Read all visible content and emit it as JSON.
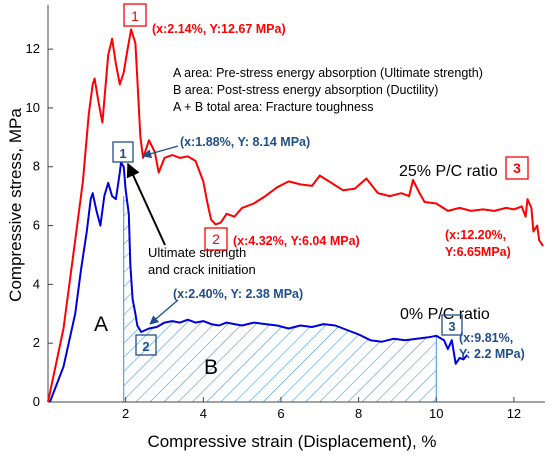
{
  "chart_data": {
    "type": "line",
    "title": "",
    "xlabel": "Compressive strain (Displacement), %",
    "ylabel": "Compressive stress, MPa",
    "xlim": [
      0,
      12.8
    ],
    "ylim": [
      0,
      13.5
    ],
    "xticks": [
      "2",
      "4",
      "6",
      "8",
      "10",
      "12"
    ],
    "xtick_values": [
      2,
      4,
      6,
      8,
      10,
      12
    ],
    "yticks": [
      "0",
      "2",
      "4",
      "6",
      "8",
      "10",
      "12"
    ],
    "ytick_values": [
      0,
      2,
      4,
      6,
      8,
      10,
      12
    ],
    "grid": false,
    "legend": [
      "A area: Pre-stress energy absorption (Ultimate strength)",
      "B area: Post-stress energy absorption (Ductility)",
      "A + B total area: Fracture toughness"
    ],
    "series": [
      {
        "name": "25% P/C ratio",
        "color": "#ff0000",
        "points": [
          [
            0,
            0
          ],
          [
            0.4,
            2.5
          ],
          [
            0.7,
            5.5
          ],
          [
            0.9,
            7.5
          ],
          [
            1.05,
            9.8
          ],
          [
            1.15,
            10.8
          ],
          [
            1.2,
            11.0
          ],
          [
            1.3,
            10.2
          ],
          [
            1.4,
            9.5
          ],
          [
            1.55,
            11.8
          ],
          [
            1.65,
            12.35
          ],
          [
            1.75,
            11.5
          ],
          [
            1.85,
            10.8
          ],
          [
            1.95,
            11.2
          ],
          [
            2.05,
            12.0
          ],
          [
            2.14,
            12.67
          ],
          [
            2.25,
            12.2
          ],
          [
            2.3,
            11.0
          ],
          [
            2.38,
            9.0
          ],
          [
            2.45,
            8.3
          ],
          [
            2.6,
            8.9
          ],
          [
            2.75,
            8.5
          ],
          [
            2.85,
            7.8
          ],
          [
            3.0,
            8.3
          ],
          [
            3.2,
            8.4
          ],
          [
            3.4,
            8.3
          ],
          [
            3.6,
            8.35
          ],
          [
            3.8,
            8.2
          ],
          [
            4.0,
            7.5
          ],
          [
            4.1,
            6.8
          ],
          [
            4.2,
            6.2
          ],
          [
            4.32,
            6.04
          ],
          [
            4.45,
            6.1
          ],
          [
            4.6,
            6.4
          ],
          [
            4.8,
            6.3
          ],
          [
            5.0,
            6.6
          ],
          [
            5.3,
            6.75
          ],
          [
            5.6,
            7.0
          ],
          [
            5.9,
            7.3
          ],
          [
            6.2,
            7.5
          ],
          [
            6.5,
            7.4
          ],
          [
            6.8,
            7.35
          ],
          [
            7.0,
            7.7
          ],
          [
            7.3,
            7.45
          ],
          [
            7.6,
            7.2
          ],
          [
            7.9,
            7.25
          ],
          [
            8.2,
            7.6
          ],
          [
            8.5,
            7.1
          ],
          [
            8.8,
            7.0
          ],
          [
            9.1,
            7.1
          ],
          [
            9.3,
            7.0
          ],
          [
            9.4,
            7.55
          ],
          [
            9.55,
            7.15
          ],
          [
            9.7,
            6.8
          ],
          [
            10.0,
            6.75
          ],
          [
            10.3,
            6.5
          ],
          [
            10.6,
            6.6
          ],
          [
            10.9,
            6.5
          ],
          [
            11.2,
            6.55
          ],
          [
            11.5,
            6.5
          ],
          [
            11.8,
            6.6
          ],
          [
            12.0,
            6.55
          ],
          [
            12.2,
            6.65
          ],
          [
            12.3,
            6.3
          ],
          [
            12.35,
            6.9
          ],
          [
            12.45,
            6.6
          ],
          [
            12.5,
            5.8
          ],
          [
            12.6,
            6.0
          ],
          [
            12.65,
            5.5
          ],
          [
            12.75,
            5.3
          ]
        ]
      },
      {
        "name": "0% P/C ratio",
        "color": "#0000dd",
        "points": [
          [
            0.05,
            0
          ],
          [
            0.4,
            1.2
          ],
          [
            0.7,
            3.0
          ],
          [
            0.85,
            4.5
          ],
          [
            1.0,
            5.8
          ],
          [
            1.1,
            6.9
          ],
          [
            1.15,
            7.1
          ],
          [
            1.25,
            6.5
          ],
          [
            1.35,
            6.0
          ],
          [
            1.45,
            7.0
          ],
          [
            1.55,
            7.45
          ],
          [
            1.65,
            7.0
          ],
          [
            1.75,
            6.9
          ],
          [
            1.85,
            7.8
          ],
          [
            1.88,
            8.14
          ],
          [
            1.95,
            8.0
          ],
          [
            2.0,
            7.2
          ],
          [
            2.08,
            6.4
          ],
          [
            2.12,
            4.7
          ],
          [
            2.18,
            3.5
          ],
          [
            2.25,
            3.0
          ],
          [
            2.3,
            2.6
          ],
          [
            2.4,
            2.38
          ],
          [
            2.6,
            2.5
          ],
          [
            2.8,
            2.55
          ],
          [
            3.0,
            2.7
          ],
          [
            3.2,
            2.75
          ],
          [
            3.4,
            2.7
          ],
          [
            3.6,
            2.8
          ],
          [
            3.8,
            2.7
          ],
          [
            4.0,
            2.75
          ],
          [
            4.2,
            2.65
          ],
          [
            4.4,
            2.6
          ],
          [
            4.6,
            2.7
          ],
          [
            4.8,
            2.65
          ],
          [
            5.0,
            2.6
          ],
          [
            5.3,
            2.7
          ],
          [
            5.6,
            2.65
          ],
          [
            5.9,
            2.6
          ],
          [
            6.2,
            2.5
          ],
          [
            6.5,
            2.6
          ],
          [
            6.8,
            2.55
          ],
          [
            7.1,
            2.65
          ],
          [
            7.4,
            2.6
          ],
          [
            7.7,
            2.45
          ],
          [
            8.0,
            2.3
          ],
          [
            8.3,
            2.1
          ],
          [
            8.6,
            2.05
          ],
          [
            8.9,
            2.15
          ],
          [
            9.2,
            2.1
          ],
          [
            9.5,
            2.15
          ],
          [
            9.8,
            2.2
          ],
          [
            10.0,
            2.25
          ],
          [
            10.2,
            2.1
          ],
          [
            10.3,
            1.8
          ],
          [
            10.4,
            2.1
          ],
          [
            10.5,
            1.3
          ],
          [
            10.6,
            1.5
          ],
          [
            10.7,
            1.45
          ],
          [
            10.8,
            1.6
          ]
        ]
      }
    ],
    "annotations": [
      {
        "marker": "1",
        "text": "(x:2.14%, Y:12.67 MPa)",
        "color": "#ff0000"
      },
      {
        "marker": "2",
        "text": "(x:4.32%, Y:6.04 MPa)",
        "color": "#ff0000"
      },
      {
        "marker": "3",
        "text_line1": "(x:12.20%,",
        "text_line2": "Y:6.65MPa)",
        "color": "#ff0000"
      },
      {
        "marker": "1",
        "text": "(x:1.88%, Y: 8.14 MPa)",
        "color": "#1f4e8c"
      },
      {
        "marker": "2",
        "text": "(x:2.40%, Y: 2.38 MPa)",
        "color": "#1f4e8c"
      },
      {
        "marker": "3",
        "text": "(x:9.81%, Y: 2.2 MPa)",
        "color": "#1f4e8c"
      }
    ],
    "region_labels": [
      "A",
      "B"
    ],
    "callout": [
      "Ultimate strength",
      "and crack initiation"
    ],
    "series_labels": [
      "25% P/C ratio",
      "0% P/C ratio"
    ],
    "hatch_range": [
      1.95,
      10.0
    ]
  }
}
